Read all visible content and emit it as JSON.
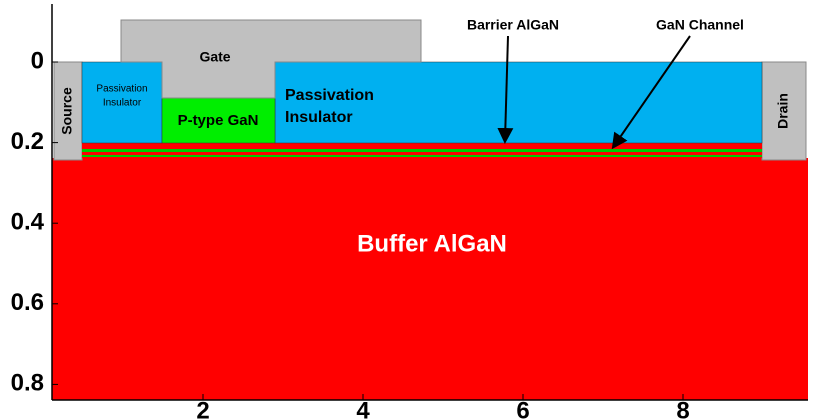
{
  "axes": {
    "xticks": [
      2,
      4,
      6,
      8
    ],
    "yticks": [
      0,
      0.2,
      0.4,
      0.6,
      0.8
    ]
  },
  "labels": {
    "gate": "Gate",
    "source": "Source",
    "drain": "Drain",
    "passivation_left": [
      "Passivation",
      "Insulator"
    ],
    "passivation_right": [
      "Passivation",
      "Insulator"
    ],
    "p_type": "P-type GaN",
    "barrier": "Barrier AlGaN",
    "channel": "GaN Channel",
    "buffer": "Buffer AlGaN"
  }
}
